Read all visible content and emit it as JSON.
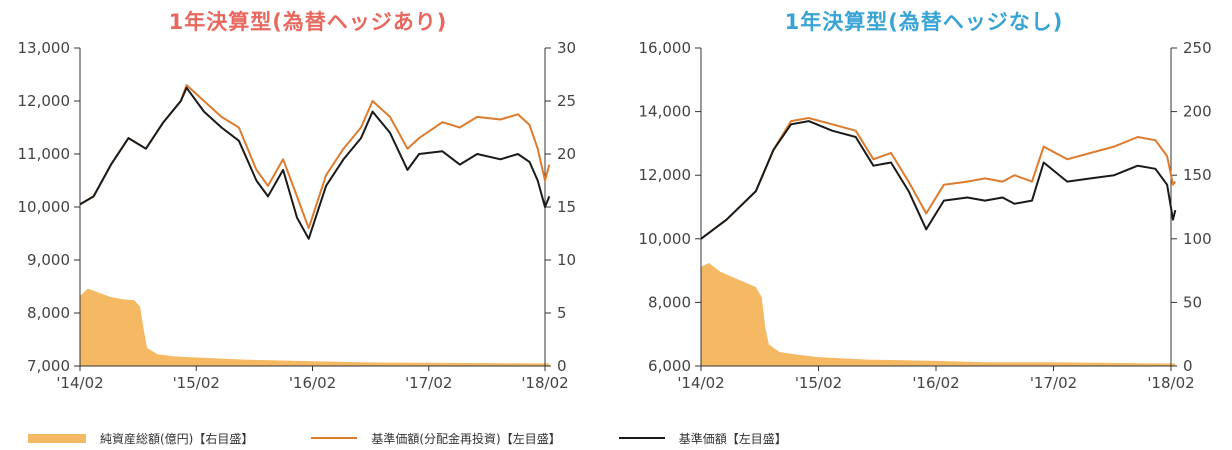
{
  "chart_data": [
    {
      "type": "line",
      "title": "1年決算型(為替ヘッジあり)",
      "x_ticks": [
        "'14/02",
        "'15/02",
        "'16/02",
        "'17/02",
        "'18/02"
      ],
      "y_left_ticks": [
        "7,000",
        "8,000",
        "9,000",
        "10,000",
        "11,000",
        "12,000",
        "13,000"
      ],
      "y_left_lim": [
        7000,
        13000
      ],
      "y_right_ticks": [
        "0",
        "5",
        "10",
        "15",
        "20",
        "25",
        "30"
      ],
      "y_right_lim": [
        0,
        30
      ],
      "series": [
        {
          "name": "純資産総額(億円)【右目盛】",
          "axis": "right",
          "kind": "area",
          "color": "#f5b964",
          "points": [
            [
              2014.083,
              6.6
            ],
            [
              2014.15,
              7.3
            ],
            [
              2014.25,
              6.9
            ],
            [
              2014.35,
              6.5
            ],
            [
              2014.45,
              6.3
            ],
            [
              2014.55,
              6.2
            ],
            [
              2014.6,
              5.6
            ],
            [
              2014.63,
              3.5
            ],
            [
              2014.66,
              1.7
            ],
            [
              2014.75,
              1.1
            ],
            [
              2014.9,
              0.9
            ],
            [
              2015.083,
              0.8
            ],
            [
              2015.5,
              0.6
            ],
            [
              2016.083,
              0.45
            ],
            [
              2016.5,
              0.35
            ],
            [
              2017.083,
              0.3
            ],
            [
              2017.5,
              0.28
            ],
            [
              2018.083,
              0.25
            ],
            [
              2018.12,
              0.25
            ]
          ]
        },
        {
          "name": "基準価額(分配金再投資)【左目盛】",
          "axis": "left",
          "kind": "line",
          "color": "#dd7b2e",
          "points": [
            [
              2014.083,
              10050
            ],
            [
              2014.2,
              10200
            ],
            [
              2014.35,
              10800
            ],
            [
              2014.5,
              11300
            ],
            [
              2014.65,
              11100
            ],
            [
              2014.8,
              11600
            ],
            [
              2014.95,
              12000
            ],
            [
              2015.0,
              12300
            ],
            [
              2015.15,
              12000
            ],
            [
              2015.3,
              11700
            ],
            [
              2015.45,
              11500
            ],
            [
              2015.6,
              10700
            ],
            [
              2015.7,
              10400
            ],
            [
              2015.83,
              10900
            ],
            [
              2015.95,
              10200
            ],
            [
              2016.05,
              9600
            ],
            [
              2016.2,
              10600
            ],
            [
              2016.35,
              11100
            ],
            [
              2016.5,
              11500
            ],
            [
              2016.6,
              12000
            ],
            [
              2016.75,
              11700
            ],
            [
              2016.9,
              11100
            ],
            [
              2017.0,
              11300
            ],
            [
              2017.2,
              11600
            ],
            [
              2017.35,
              11500
            ],
            [
              2017.5,
              11700
            ],
            [
              2017.7,
              11650
            ],
            [
              2017.85,
              11750
            ],
            [
              2017.95,
              11550
            ],
            [
              2018.02,
              11100
            ],
            [
              2018.083,
              10500
            ],
            [
              2018.12,
              10800
            ]
          ]
        },
        {
          "name": "基準価額【左目盛】",
          "axis": "left",
          "kind": "line",
          "color": "#1a1a1a",
          "points": [
            [
              2014.083,
              10050
            ],
            [
              2014.2,
              10200
            ],
            [
              2014.35,
              10800
            ],
            [
              2014.5,
              11300
            ],
            [
              2014.65,
              11100
            ],
            [
              2014.8,
              11600
            ],
            [
              2014.95,
              12000
            ],
            [
              2015.0,
              12250
            ],
            [
              2015.15,
              11800
            ],
            [
              2015.3,
              11500
            ],
            [
              2015.45,
              11250
            ],
            [
              2015.6,
              10500
            ],
            [
              2015.7,
              10200
            ],
            [
              2015.83,
              10700
            ],
            [
              2015.95,
              9800
            ],
            [
              2016.05,
              9400
            ],
            [
              2016.2,
              10400
            ],
            [
              2016.35,
              10900
            ],
            [
              2016.5,
              11300
            ],
            [
              2016.6,
              11800
            ],
            [
              2016.75,
              11400
            ],
            [
              2016.9,
              10700
            ],
            [
              2017.0,
              11000
            ],
            [
              2017.2,
              11050
            ],
            [
              2017.35,
              10800
            ],
            [
              2017.5,
              11000
            ],
            [
              2017.7,
              10900
            ],
            [
              2017.85,
              11000
            ],
            [
              2017.95,
              10850
            ],
            [
              2018.02,
              10500
            ],
            [
              2018.083,
              10000
            ],
            [
              2018.12,
              10200
            ]
          ]
        }
      ]
    },
    {
      "type": "line",
      "title": "1年決算型(為替ヘッジなし)",
      "x_ticks": [
        "'14/02",
        "'15/02",
        "'16/02",
        "'17/02",
        "'18/02"
      ],
      "y_left_ticks": [
        "6,000",
        "8,000",
        "10,000",
        "12,000",
        "14,000",
        "16,000"
      ],
      "y_left_lim": [
        6000,
        16000
      ],
      "y_right_ticks": [
        "0",
        "50",
        "100",
        "150",
        "200",
        "250"
      ],
      "y_right_lim": [
        0,
        250
      ],
      "series": [
        {
          "name": "純資産総額(億円)【右目盛】",
          "axis": "right",
          "kind": "area",
          "color": "#f5b964",
          "points": [
            [
              2014.083,
              78
            ],
            [
              2014.15,
              81
            ],
            [
              2014.25,
              74
            ],
            [
              2014.35,
              70
            ],
            [
              2014.45,
              66
            ],
            [
              2014.55,
              62
            ],
            [
              2014.6,
              54
            ],
            [
              2014.63,
              30
            ],
            [
              2014.66,
              17
            ],
            [
              2014.75,
              11
            ],
            [
              2014.9,
              9
            ],
            [
              2015.083,
              7
            ],
            [
              2015.5,
              5
            ],
            [
              2016.083,
              4
            ],
            [
              2016.5,
              3
            ],
            [
              2017.083,
              3
            ],
            [
              2017.5,
              2.5
            ],
            [
              2018.083,
              2
            ],
            [
              2018.12,
              2
            ]
          ]
        },
        {
          "name": "基準価額(分配金再投資)【左目盛】",
          "axis": "left",
          "kind": "line",
          "color": "#dd7b2e",
          "points": [
            [
              2014.083,
              10000
            ],
            [
              2014.3,
              10600
            ],
            [
              2014.55,
              11500
            ],
            [
              2014.7,
              12800
            ],
            [
              2014.85,
              13700
            ],
            [
              2015.0,
              13800
            ],
            [
              2015.2,
              13600
            ],
            [
              2015.4,
              13400
            ],
            [
              2015.55,
              12500
            ],
            [
              2015.7,
              12700
            ],
            [
              2015.85,
              11800
            ],
            [
              2016.0,
              10800
            ],
            [
              2016.15,
              11700
            ],
            [
              2016.35,
              11800
            ],
            [
              2016.5,
              11900
            ],
            [
              2016.65,
              11800
            ],
            [
              2016.75,
              12000
            ],
            [
              2016.9,
              11800
            ],
            [
              2017.0,
              12900
            ],
            [
              2017.2,
              12500
            ],
            [
              2017.4,
              12700
            ],
            [
              2017.6,
              12900
            ],
            [
              2017.8,
              13200
            ],
            [
              2017.95,
              13100
            ],
            [
              2018.05,
              12600
            ],
            [
              2018.1,
              11700
            ],
            [
              2018.12,
              11800
            ]
          ]
        },
        {
          "name": "基準価額【左目盛】",
          "axis": "left",
          "kind": "line",
          "color": "#1a1a1a",
          "points": [
            [
              2014.083,
              10000
            ],
            [
              2014.3,
              10600
            ],
            [
              2014.55,
              11500
            ],
            [
              2014.7,
              12800
            ],
            [
              2014.85,
              13600
            ],
            [
              2015.0,
              13700
            ],
            [
              2015.2,
              13400
            ],
            [
              2015.4,
              13200
            ],
            [
              2015.55,
              12300
            ],
            [
              2015.7,
              12400
            ],
            [
              2015.85,
              11500
            ],
            [
              2016.0,
              10300
            ],
            [
              2016.15,
              11200
            ],
            [
              2016.35,
              11300
            ],
            [
              2016.5,
              11200
            ],
            [
              2016.65,
              11300
            ],
            [
              2016.75,
              11100
            ],
            [
              2016.9,
              11200
            ],
            [
              2017.0,
              12400
            ],
            [
              2017.2,
              11800
            ],
            [
              2017.4,
              11900
            ],
            [
              2017.6,
              12000
            ],
            [
              2017.8,
              12300
            ],
            [
              2017.95,
              12200
            ],
            [
              2018.05,
              11700
            ],
            [
              2018.1,
              10600
            ],
            [
              2018.12,
              10900
            ]
          ]
        }
      ]
    }
  ],
  "legend": {
    "items": [
      {
        "label": "純資産総額(億円)【右目盛】",
        "kind": "area",
        "color": "#f5b964"
      },
      {
        "label": "基準価額(分配金再投資)【左目盛】",
        "kind": "line",
        "color": "#dd7b2e"
      },
      {
        "label": "基準価額【左目盛】",
        "kind": "line",
        "color": "#1a1a1a"
      }
    ]
  }
}
